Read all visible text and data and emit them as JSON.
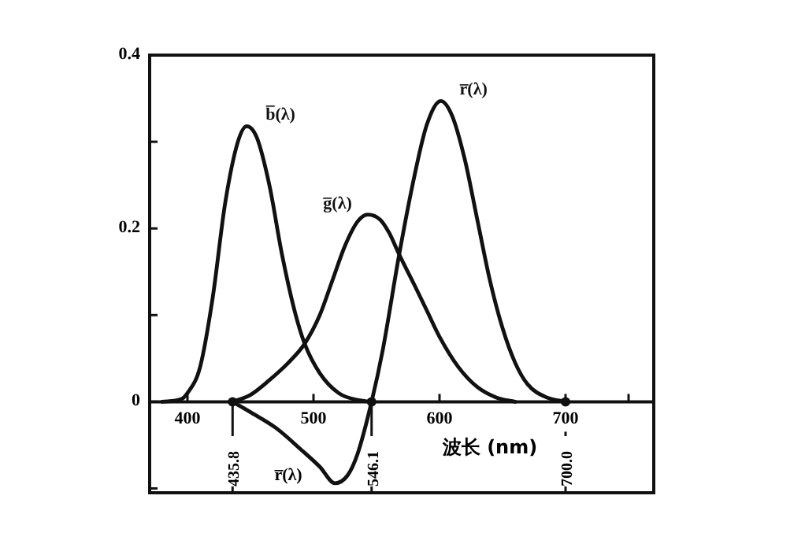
{
  "chart_data": {
    "type": "line",
    "xlabel": "波长 (nm)",
    "xlim": [
      370,
      770
    ],
    "ylim": [
      -0.105,
      0.4
    ],
    "xticks": [
      400,
      500,
      600,
      700,
      {
        "value": 750,
        "label": null
      }
    ],
    "yticks": [
      {
        "value": -0.1,
        "label": null
      },
      0,
      {
        "value": 0.1,
        "label": null
      },
      0.2,
      {
        "value": 0.3,
        "label": null
      },
      0.4
    ],
    "series": [
      {
        "name": "b̅(λ)",
        "color": "#111111",
        "x": [
          380,
          395,
          400,
          410,
          420,
          430,
          440,
          447,
          455,
          465,
          475,
          485,
          493,
          505,
          520,
          535,
          546
        ],
        "values": [
          0,
          0.003,
          0.01,
          0.04,
          0.12,
          0.23,
          0.3,
          0.318,
          0.305,
          0.25,
          0.17,
          0.105,
          0.067,
          0.033,
          0.01,
          0.002,
          0
        ]
      },
      {
        "name": "g̅(λ)",
        "color": "#111111",
        "x": [
          435.8,
          450,
          465,
          480,
          493,
          505,
          515,
          525,
          535,
          543,
          553,
          560,
          568,
          580,
          590,
          600,
          615,
          630,
          645,
          660
        ],
        "values": [
          0,
          0.008,
          0.025,
          0.045,
          0.067,
          0.1,
          0.14,
          0.18,
          0.208,
          0.216,
          0.21,
          0.195,
          0.17,
          0.135,
          0.105,
          0.075,
          0.04,
          0.017,
          0.005,
          0
        ]
      },
      {
        "name": "r̅(λ)",
        "color": "#111111",
        "x": [
          435.8,
          450,
          470,
          490,
          505,
          517,
          527,
          535,
          546.1,
          555,
          568,
          580,
          590,
          601,
          610,
          620,
          630,
          640,
          650,
          660,
          670,
          685,
          700
        ],
        "values": [
          0,
          -0.012,
          -0.03,
          -0.055,
          -0.075,
          -0.094,
          -0.085,
          -0.06,
          0,
          0.06,
          0.17,
          0.26,
          0.32,
          0.347,
          0.33,
          0.28,
          0.21,
          0.14,
          0.085,
          0.045,
          0.02,
          0.005,
          0
        ]
      }
    ],
    "annotations": [
      "r̅(λ)"
    ],
    "ref_lines": [
      {
        "axis": "x",
        "value": 435.8,
        "label": "435.8"
      },
      {
        "axis": "x",
        "value": 546.1,
        "label": "546.1"
      },
      {
        "axis": "x",
        "value": 700.0,
        "label": "700.0"
      }
    ]
  }
}
